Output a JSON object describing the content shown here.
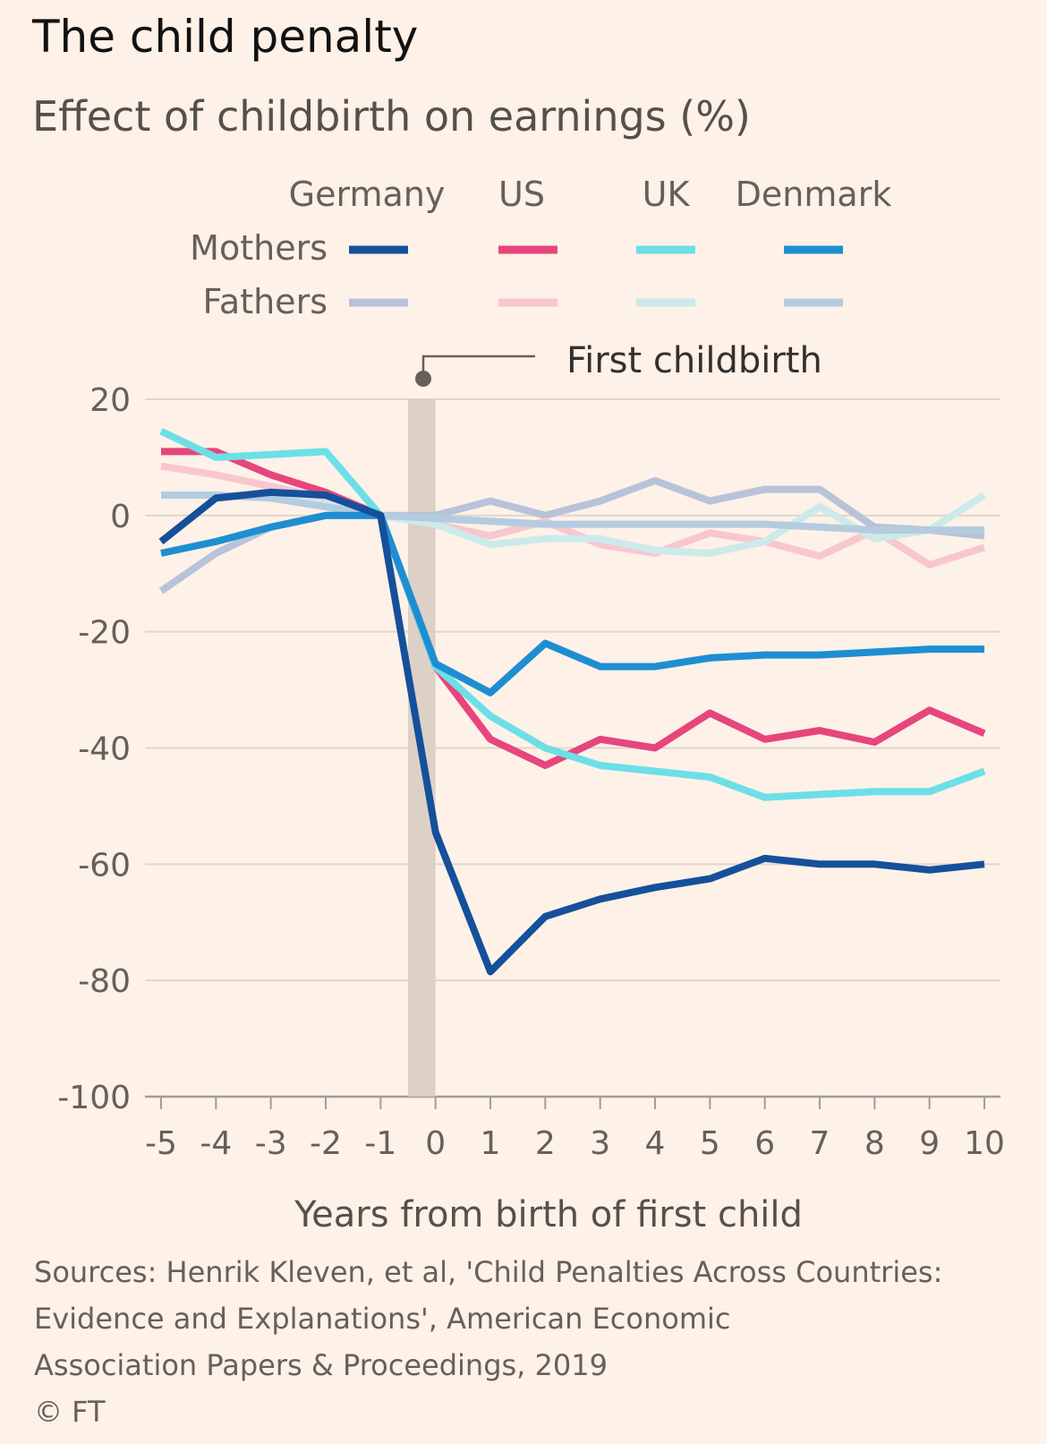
{
  "title": "The child penalty",
  "subtitle": "Effect of childbirth on earnings (%)",
  "annotation": "First childbirth",
  "sources": [
    "Sources: Henrik Kleven, et al, 'Child Penalties Across Countries:",
    "Evidence and Explanations', American Economic",
    "Association Papers & Proceedings, 2019"
  ],
  "credit": "© FT",
  "legend": {
    "columns": [
      "Germany",
      "US",
      "UK",
      "Denmark"
    ],
    "rows": [
      "Mothers",
      "Fathers"
    ]
  },
  "chart_data": {
    "type": "line",
    "xlabel": "Years from birth of first child",
    "ylabel": "",
    "x": [
      -5,
      -4,
      -3,
      -2,
      -1,
      0,
      1,
      2,
      3,
      4,
      5,
      6,
      7,
      8,
      9,
      10
    ],
    "xlim": [
      -5,
      10
    ],
    "ylim": [
      -100,
      20
    ],
    "yticks": [
      20,
      0,
      -20,
      -40,
      -60,
      -80,
      -100
    ],
    "grid": "horizontal",
    "highlight_band": [
      -0.5,
      0
    ],
    "series": [
      {
        "name": "Germany",
        "group": "Fathers",
        "color": "#b8c2d8",
        "width": 8,
        "values": [
          -13,
          -6.5,
          -2,
          0,
          0,
          0,
          2.5,
          0,
          2.5,
          6,
          2.5,
          4.5,
          4.5,
          -2,
          -2.5,
          -3.5
        ]
      },
      {
        "name": "US",
        "group": "Fathers",
        "color": "#f8c6cf",
        "width": 8,
        "values": [
          8.5,
          7,
          5,
          3,
          0,
          -1.5,
          -3.5,
          -1,
          -5,
          -6.5,
          -3,
          -4.5,
          -7,
          -2.5,
          -8.5,
          -5.5
        ]
      },
      {
        "name": "UK",
        "group": "Fathers",
        "color": "#cceaea",
        "width": 8,
        "values": [
          3.5,
          3.5,
          3,
          2,
          0,
          -1.5,
          -5,
          -4,
          -4,
          -6,
          -6.5,
          -4.5,
          1.5,
          -4,
          -2.5,
          3.5
        ]
      },
      {
        "name": "Denmark",
        "group": "Fathers",
        "color": "#b4cce0",
        "width": 8,
        "values": [
          3.5,
          3.5,
          3,
          1.5,
          0,
          -0.5,
          -1,
          -1.5,
          -1.5,
          -1.5,
          -1.5,
          -1.5,
          -2,
          -2.5,
          -2.5,
          -2.5
        ]
      },
      {
        "name": "US",
        "group": "Mothers",
        "color": "#e6467c",
        "width": 8,
        "values": [
          11,
          11,
          7,
          4,
          0,
          -26,
          -38.5,
          -43,
          -38.5,
          -40,
          -34,
          -38.5,
          -37,
          -39,
          -33.5,
          -37.5
        ]
      },
      {
        "name": "UK",
        "group": "Mothers",
        "color": "#6ddfe6",
        "width": 8,
        "values": [
          14.5,
          10,
          10.5,
          11,
          0,
          -26,
          -34.5,
          -40,
          -43,
          -44,
          -45,
          -48.5,
          -48,
          -47.5,
          -47.5,
          -44
        ]
      },
      {
        "name": "Denmark",
        "group": "Mothers",
        "color": "#1e8ed2",
        "width": 8,
        "values": [
          -6.5,
          -4.5,
          -2,
          0,
          0,
          -25.5,
          -30.5,
          -22,
          -26,
          -26,
          -24.5,
          -24,
          -24,
          -23.5,
          -23,
          -23
        ]
      },
      {
        "name": "Germany",
        "group": "Mothers",
        "color": "#15509a",
        "width": 8,
        "values": [
          -4.5,
          3,
          4,
          3.5,
          0,
          -54.5,
          -78.5,
          -69,
          -66,
          -64,
          -62.5,
          -59,
          -60,
          -60,
          -61,
          -60
        ]
      }
    ]
  }
}
